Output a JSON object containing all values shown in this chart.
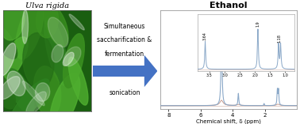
{
  "title_seaweed": "Ulva rigida",
  "title_ethanol": "Ethanol",
  "arrow_text_line1": "Simultaneous",
  "arrow_text_line2": "saccharification &",
  "arrow_text_line3": "fermentation",
  "arrow_text_line4": "sonication",
  "xlabel": "Chemical shift, δ (ppm)",
  "background_color": "#ffffff",
  "inset_label_3_64": "3.64",
  "inset_label_1_90": "1.9",
  "inset_label_1_18": "1.18",
  "nmr_line_color": "#8aa8c8",
  "nmr_baseline_color": "#c09080",
  "box_edge_color": "#999999",
  "arrow_color": "#4472c4",
  "seaweed_dark": "#1a6010",
  "seaweed_mid": "#2d8020",
  "seaweed_light": "#50b030",
  "seaweed_bright": "#70cc40"
}
